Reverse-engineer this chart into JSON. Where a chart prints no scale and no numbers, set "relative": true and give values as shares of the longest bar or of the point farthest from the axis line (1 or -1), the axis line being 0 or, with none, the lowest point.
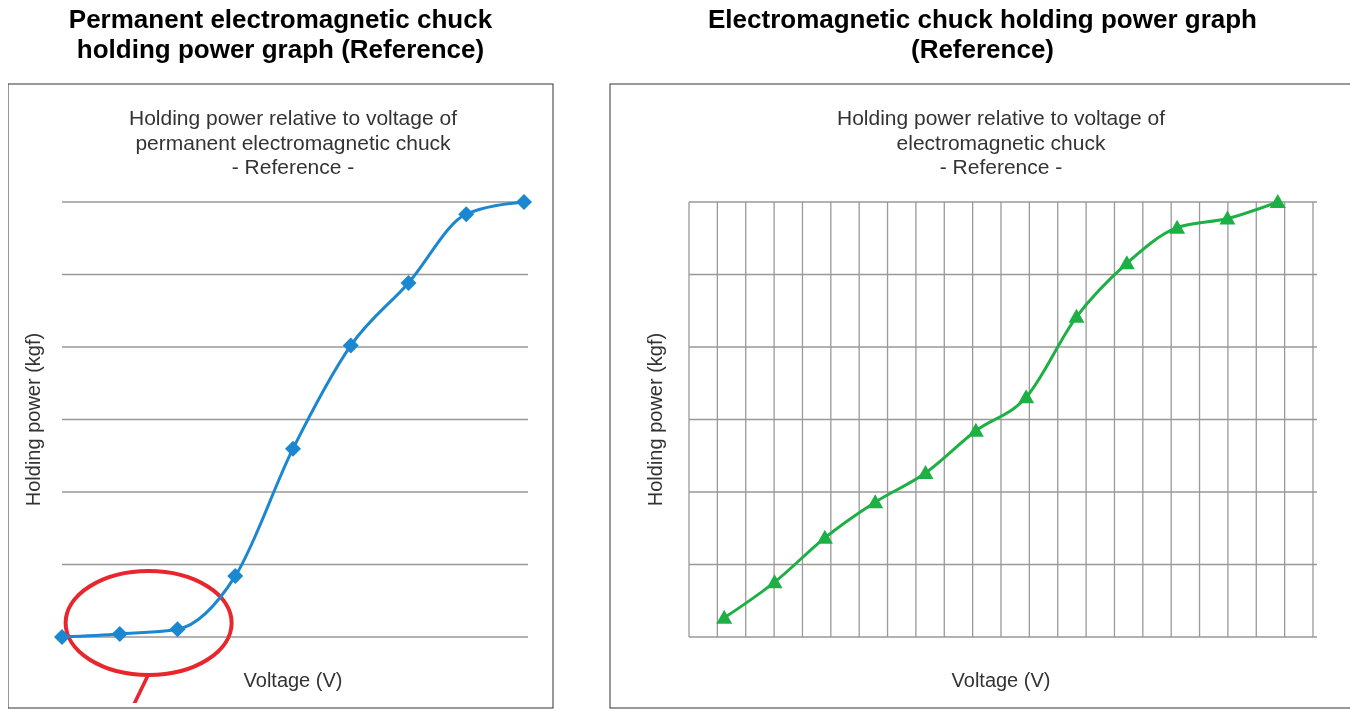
{
  "chart_data": [
    {
      "type": "line",
      "title": "Permanent electromagnetic chuck\nholding power graph (Reference)",
      "subtitle": "Holding power relative to voltage of\npermanent electromagnetic chuck\n- Reference -",
      "xlabel": "Voltage (V)",
      "ylabel": "Holding power (kgf)",
      "relative": true,
      "grid": "y",
      "marker": "diamond",
      "categories": [
        null,
        null,
        null,
        null,
        null,
        null,
        null,
        null,
        null
      ],
      "series": [
        {
          "color": "#1a87d0",
          "values": [
            0,
            0.007,
            0.018,
            0.14,
            0.433,
            0.67,
            0.814,
            0.972,
            1
          ]
        }
      ]
    },
    {
      "type": "line",
      "title": "Electromagnetic chuck holding power graph\n(Reference)",
      "subtitle": "Holding power relative to voltage of\nelectromagnetic chuck\n- Reference -",
      "xlabel": "Voltage (V)",
      "ylabel": "Holding power (kgf)",
      "relative": true,
      "grid": true,
      "marker": "triangle",
      "categories": [
        null,
        null,
        null,
        null,
        null,
        null,
        null,
        null,
        null,
        null,
        null,
        null
      ],
      "series": [
        {
          "color": "#1db044",
          "values": [
            0.044,
            0.126,
            0.228,
            0.31,
            0.377,
            0.474,
            0.551,
            0.736,
            0.859,
            0.941,
            0.962,
            1
          ]
        }
      ]
    }
  ]
}
